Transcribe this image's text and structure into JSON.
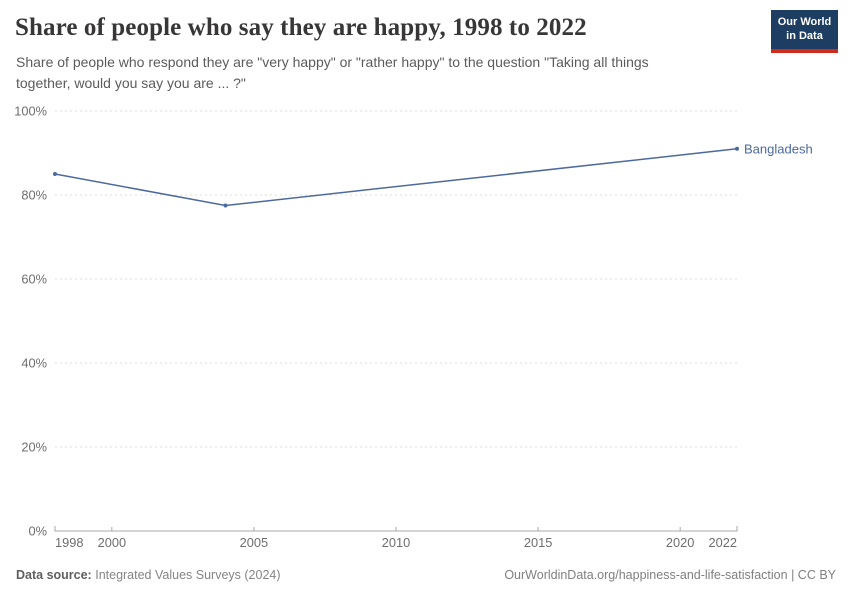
{
  "header": {
    "title": "Share of people who say they are happy, 1998 to 2022",
    "subtitle": "Share of people who respond they are \"very happy\" or \"rather happy\" to the question \"Taking all things together, would you say you are ... ?\"",
    "logo": {
      "line1": "Our World",
      "line2": "in Data",
      "bg_color": "#1d3d63",
      "accent_color": "#cf2c1b"
    }
  },
  "chart_data": {
    "type": "line",
    "title": "Share of people who say they are happy, 1998 to 2022",
    "xlabel": "",
    "ylabel": "",
    "xlim": [
      1998,
      2022
    ],
    "ylim": [
      0,
      100
    ],
    "x_ticks": [
      1998,
      2000,
      2005,
      2010,
      2015,
      2020,
      2022
    ],
    "y_ticks": [
      0,
      20,
      40,
      60,
      80,
      100
    ],
    "y_tick_suffix": "%",
    "grid": "horizontal-dashed",
    "legend_position": "end-of-line-label",
    "series": [
      {
        "name": "Bangladesh",
        "color": "#4C6A9C",
        "x": [
          1998,
          2004,
          2022
        ],
        "values": [
          85,
          77.5,
          91
        ]
      }
    ],
    "colors": {
      "gridline": "#dedede",
      "axis": "#a8a8a8",
      "tick_label": "#6e6e6e"
    }
  },
  "footer": {
    "source_label": "Data source:",
    "source_value": "Integrated Values Surveys (2024)",
    "url": "OurWorldinData.org/happiness-and-life-satisfaction",
    "separator": "|",
    "license": "CC BY"
  }
}
